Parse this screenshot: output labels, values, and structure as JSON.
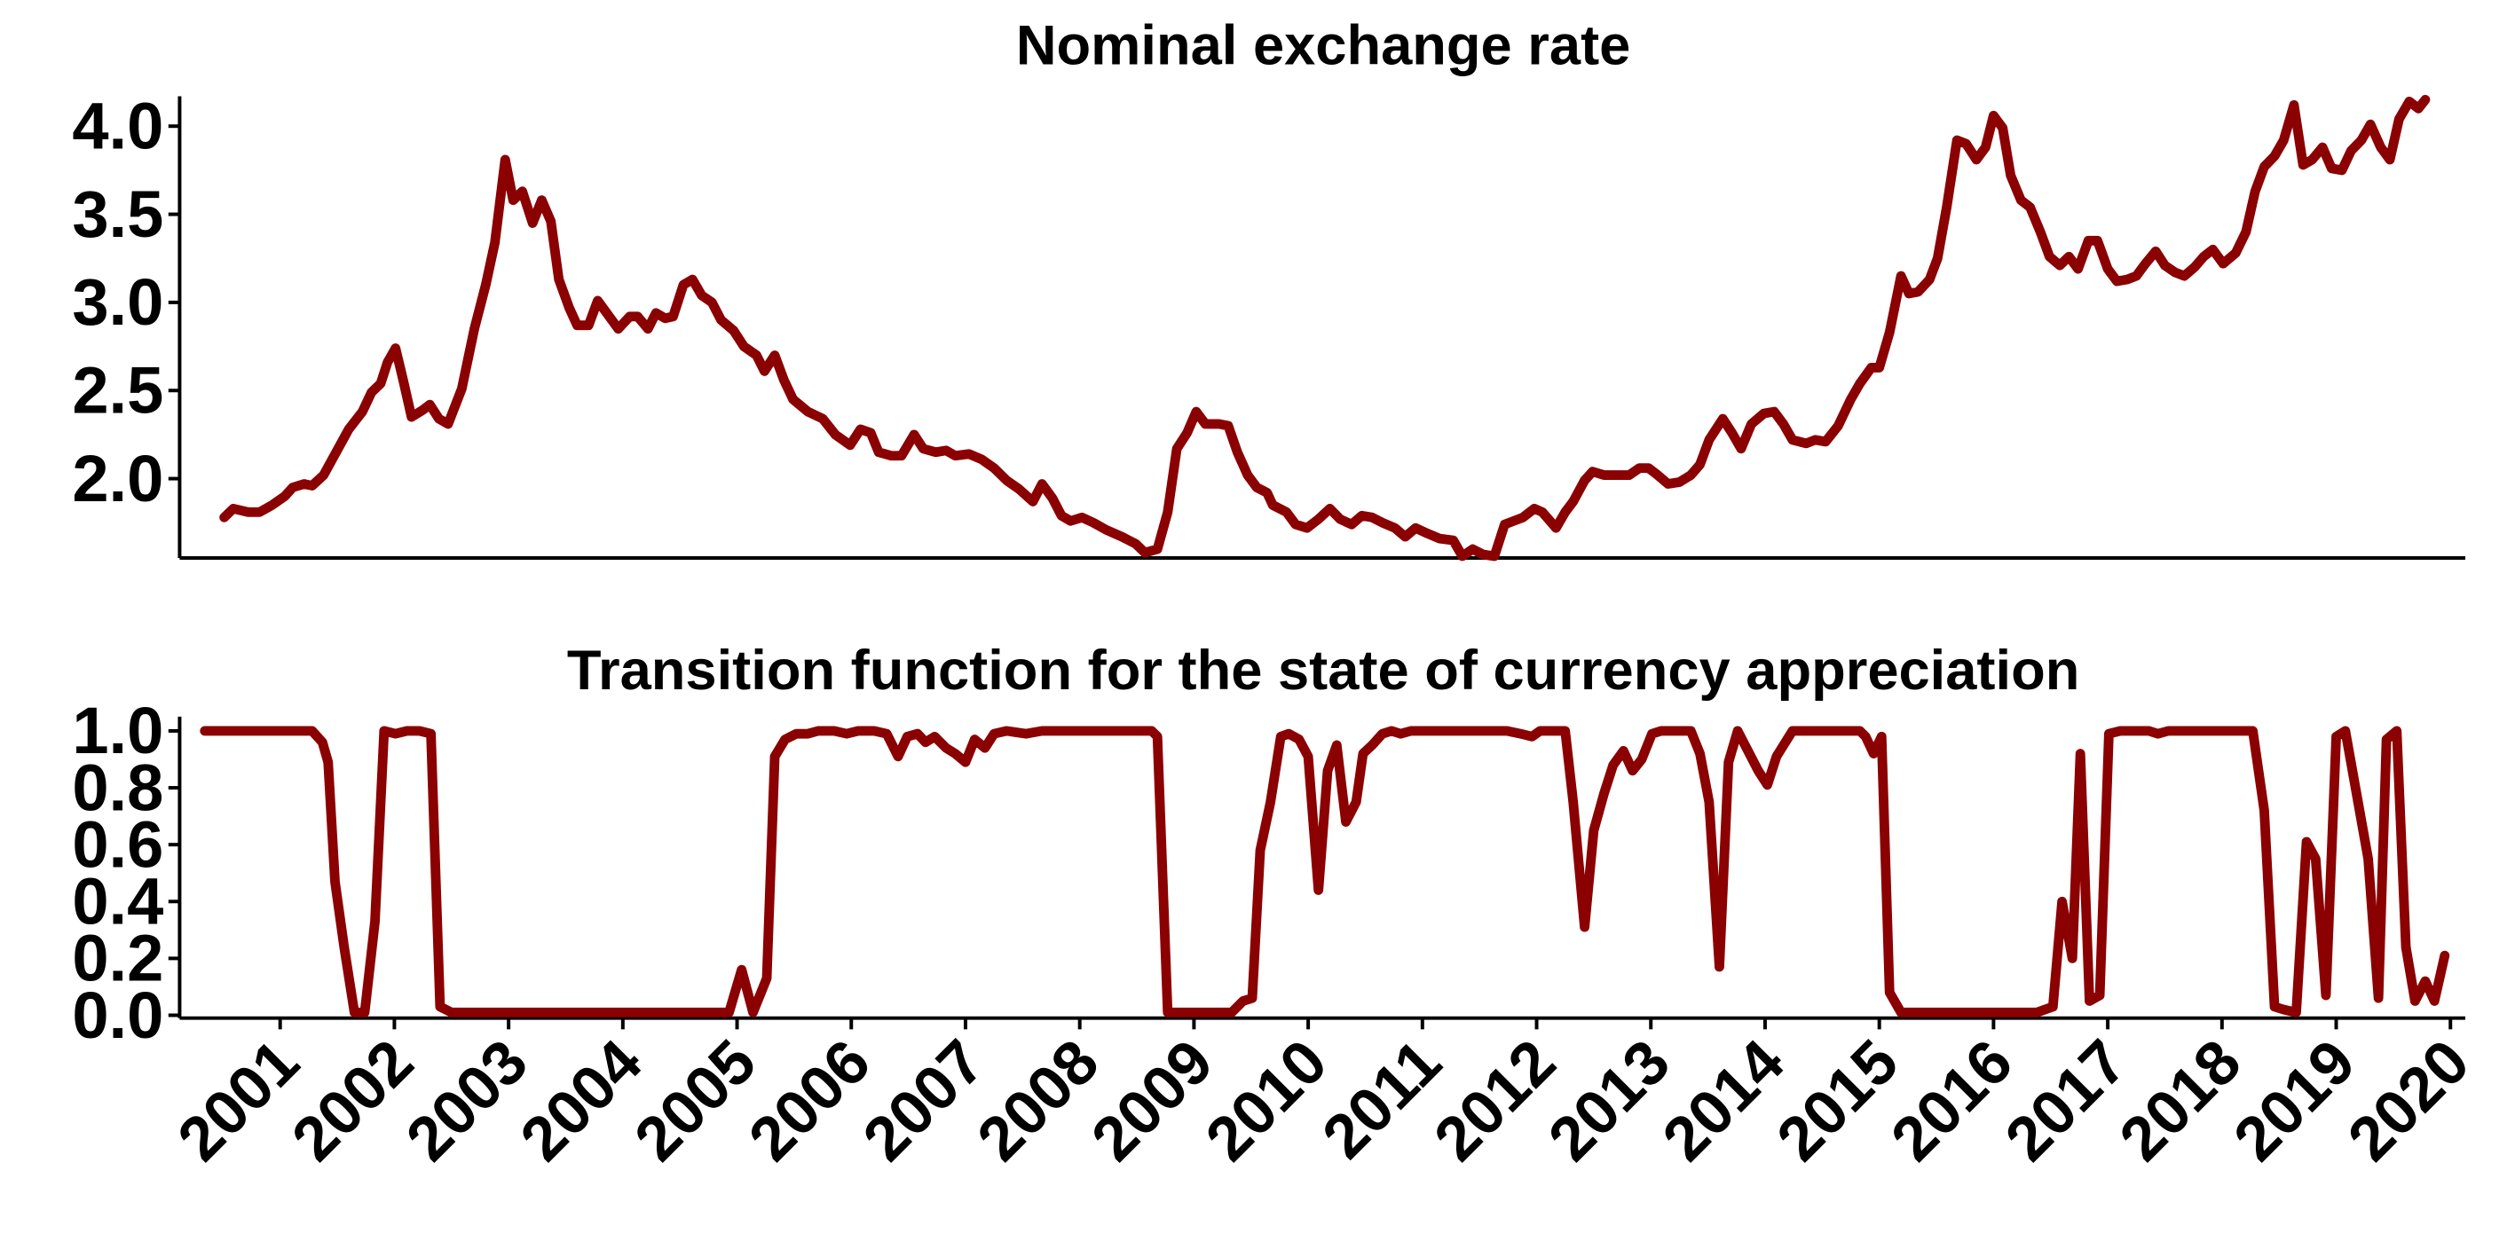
{
  "chart_data": [
    {
      "type": "line",
      "title": "Nominal exchange rate",
      "color": "#8b0000",
      "xlim": [
        2000.12,
        2020.13
      ],
      "ylim": [
        1.55,
        4.17
      ],
      "yticks": [
        2.0,
        2.5,
        3.0,
        3.5,
        4.0
      ],
      "x": [
        2000.51,
        2000.59,
        2000.72,
        2000.82,
        2000.93,
        2001.04,
        2001.11,
        2001.21,
        2001.28,
        2001.38,
        2001.49,
        2001.6,
        2001.72,
        2001.8,
        2001.88,
        2001.94,
        2002.01,
        2002.08,
        2002.15,
        2002.25,
        2002.31,
        2002.39,
        2002.47,
        2002.59,
        2002.7,
        2002.8,
        2002.88,
        2002.97,
        2003.04,
        2003.12,
        2003.21,
        2003.29,
        2003.37,
        2003.44,
        2003.53,
        2003.6,
        2003.7,
        2003.78,
        2003.87,
        2003.96,
        2004.06,
        2004.13,
        2004.22,
        2004.29,
        2004.37,
        2004.44,
        2004.53,
        2004.61,
        2004.69,
        2004.78,
        2004.86,
        2004.97,
        2005.06,
        2005.17,
        2005.24,
        2005.33,
        2005.41,
        2005.49,
        2005.62,
        2005.75,
        2005.86,
        2005.99,
        2006.08,
        2006.17,
        2006.24,
        2006.35,
        2006.44,
        2006.55,
        2006.63,
        2006.74,
        2006.83,
        2006.91,
        2007.03,
        2007.14,
        2007.25,
        2007.36,
        2007.47,
        2007.59,
        2007.67,
        2007.76,
        2007.84,
        2007.92,
        2008.02,
        2008.12,
        2008.23,
        2008.37,
        2008.49,
        2008.57,
        2008.68,
        2008.77,
        2008.85,
        2008.94,
        2009.02,
        2009.1,
        2009.22,
        2009.3,
        2009.38,
        2009.47,
        2009.55,
        2009.64,
        2009.69,
        2009.81,
        2009.89,
        2009.99,
        2010.09,
        2010.19,
        2010.28,
        2010.38,
        2010.47,
        2010.56,
        2010.65,
        2010.76,
        2010.85,
        2010.94,
        2011.04,
        2011.15,
        2011.27,
        2011.35,
        2011.44,
        2011.53,
        2011.63,
        2011.72,
        2011.8,
        2011.88,
        2011.98,
        2012.05,
        2012.17,
        2012.25,
        2012.32,
        2012.42,
        2012.49,
        2012.59,
        2012.7,
        2012.81,
        2012.9,
        2012.98,
        2013.06,
        2013.15,
        2013.25,
        2013.35,
        2013.43,
        2013.51,
        2013.63,
        2013.71,
        2013.79,
        2013.88,
        2013.99,
        2014.08,
        2014.16,
        2014.24,
        2014.36,
        2014.44,
        2014.53,
        2014.64,
        2014.75,
        2014.83,
        2014.93,
        2015.0,
        2015.09,
        2015.19,
        2015.26,
        2015.34,
        2015.44,
        2015.51,
        2015.59,
        2015.68,
        2015.76,
        2015.85,
        2015.93,
        2016.0,
        2016.08,
        2016.15,
        2016.24,
        2016.32,
        2016.41,
        2016.49,
        2016.58,
        2016.66,
        2016.74,
        2016.83,
        2016.91,
        2017.0,
        2017.08,
        2017.17,
        2017.25,
        2017.33,
        2017.42,
        2017.5,
        2017.59,
        2017.67,
        2017.76,
        2017.84,
        2017.92,
        2018.01,
        2018.12,
        2018.21,
        2018.29,
        2018.37,
        2018.46,
        2018.54,
        2018.63,
        2018.71,
        2018.79,
        2018.88,
        2018.96,
        2019.05,
        2019.13,
        2019.22,
        2019.3,
        2019.39,
        2019.47,
        2019.55,
        2019.64,
        2019.72,
        2019.78
      ],
      "values": [
        1.78,
        1.83,
        1.81,
        1.81,
        1.85,
        1.9,
        1.95,
        1.97,
        1.96,
        2.02,
        2.15,
        2.28,
        2.38,
        2.49,
        2.54,
        2.66,
        2.74,
        2.55,
        2.35,
        2.39,
        2.42,
        2.34,
        2.31,
        2.51,
        2.85,
        3.1,
        3.34,
        3.81,
        3.58,
        3.63,
        3.45,
        3.58,
        3.46,
        3.13,
        2.97,
        2.87,
        2.87,
        3.01,
        2.93,
        2.85,
        2.92,
        2.92,
        2.85,
        2.94,
        2.91,
        2.92,
        3.1,
        3.13,
        3.04,
        3.0,
        2.9,
        2.84,
        2.75,
        2.7,
        2.61,
        2.7,
        2.56,
        2.45,
        2.38,
        2.34,
        2.25,
        2.19,
        2.28,
        2.26,
        2.15,
        2.13,
        2.13,
        2.25,
        2.17,
        2.15,
        2.16,
        2.13,
        2.14,
        2.11,
        2.06,
        1.99,
        1.94,
        1.87,
        1.97,
        1.89,
        1.79,
        1.76,
        1.78,
        1.75,
        1.71,
        1.67,
        1.63,
        1.58,
        1.6,
        1.81,
        2.17,
        2.26,
        2.38,
        2.31,
        2.31,
        2.3,
        2.15,
        2.02,
        1.95,
        1.92,
        1.85,
        1.81,
        1.74,
        1.72,
        1.77,
        1.83,
        1.77,
        1.74,
        1.79,
        1.78,
        1.75,
        1.72,
        1.67,
        1.72,
        1.69,
        1.66,
        1.65,
        1.56,
        1.6,
        1.57,
        1.56,
        1.74,
        1.76,
        1.78,
        1.83,
        1.81,
        1.72,
        1.81,
        1.87,
        1.99,
        2.04,
        2.02,
        2.02,
        2.02,
        2.06,
        2.06,
        2.02,
        1.97,
        1.98,
        2.02,
        2.08,
        2.22,
        2.34,
        2.26,
        2.17,
        2.31,
        2.37,
        2.38,
        2.31,
        2.22,
        2.2,
        2.22,
        2.21,
        2.3,
        2.45,
        2.54,
        2.63,
        2.63,
        2.83,
        3.15,
        3.05,
        3.06,
        3.13,
        3.25,
        3.54,
        3.92,
        3.9,
        3.81,
        3.88,
        4.06,
        3.99,
        3.72,
        3.58,
        3.54,
        3.4,
        3.26,
        3.21,
        3.26,
        3.19,
        3.35,
        3.35,
        3.19,
        3.12,
        3.13,
        3.15,
        3.22,
        3.29,
        3.21,
        3.17,
        3.15,
        3.2,
        3.26,
        3.3,
        3.22,
        3.28,
        3.4,
        3.63,
        3.77,
        3.83,
        3.92,
        4.12,
        3.78,
        3.81,
        3.88,
        3.76,
        3.75,
        3.86,
        3.92,
        4.01,
        3.88,
        3.81,
        4.04,
        4.14,
        4.1,
        4.15
      ]
    },
    {
      "type": "line",
      "title": "Transition function for the state of currency appreciation",
      "color": "#8b0000",
      "xlim": [
        2000.12,
        2020.13
      ],
      "ylim": [
        -0.01,
        1.05
      ],
      "yticks": [
        0.0,
        0.2,
        0.4,
        0.6,
        0.8,
        1.0
      ],
      "xticks": [
        2001,
        2002,
        2003,
        2004,
        2005,
        2006,
        2007,
        2008,
        2009,
        2010,
        2011,
        2012,
        2013,
        2014,
        2015,
        2016,
        2017,
        2018,
        2019,
        2020
      ],
      "x": [
        2000.34,
        2001.28,
        2001.37,
        2001.42,
        2001.48,
        2001.56,
        2001.65,
        2001.74,
        2001.83,
        2001.91,
        2002.01,
        2002.11,
        2002.22,
        2002.32,
        2002.4,
        2002.5,
        2002.62,
        2004.93,
        2005.04,
        2005.14,
        2005.26,
        2005.33,
        2005.42,
        2005.52,
        2005.62,
        2005.71,
        2005.85,
        2005.96,
        2006.06,
        2006.2,
        2006.31,
        2006.41,
        2006.49,
        2006.58,
        2006.65,
        2006.73,
        2006.83,
        2006.91,
        2007.0,
        2007.08,
        2007.17,
        2007.25,
        2007.36,
        2007.53,
        2007.67,
        2008.37,
        2008.63,
        2008.68,
        2008.77,
        2008.94,
        2009.33,
        2009.43,
        2009.51,
        2009.58,
        2009.67,
        2009.76,
        2009.83,
        2009.92,
        2010.0,
        2010.09,
        2010.17,
        2010.25,
        2010.33,
        2010.42,
        2010.48,
        2010.56,
        2010.65,
        2010.73,
        2010.81,
        2010.9,
        2011.18,
        2011.74,
        2011.86,
        2011.96,
        2012.03,
        2012.25,
        2012.32,
        2012.42,
        2012.5,
        2012.59,
        2012.67,
        2012.76,
        2012.84,
        2012.92,
        2013.01,
        2013.09,
        2013.35,
        2013.43,
        2013.51,
        2013.6,
        2013.68,
        2013.76,
        2013.85,
        2013.94,
        2014.02,
        2014.1,
        2014.24,
        2014.83,
        2014.88,
        2014.95,
        2015.02,
        2015.09,
        2015.19,
        2015.4,
        2016.38,
        2016.52,
        2016.6,
        2016.69,
        2016.76,
        2016.84,
        2016.93,
        2017.01,
        2017.11,
        2017.36,
        2017.44,
        2017.53,
        2018.27,
        2018.37,
        2018.46,
        2018.54,
        2018.65,
        2018.74,
        2018.82,
        2018.91,
        2019.0,
        2019.08,
        2019.28,
        2019.37,
        2019.44,
        2019.53,
        2019.61,
        2019.69,
        2019.78,
        2019.86,
        2019.95
      ],
      "values": [
        1.0,
        1.0,
        0.96,
        0.89,
        0.47,
        0.24,
        0.01,
        0.01,
        0.33,
        1.0,
        0.99,
        1.0,
        1.0,
        0.99,
        0.03,
        0.01,
        0.01,
        0.01,
        0.16,
        0.01,
        0.13,
        0.91,
        0.97,
        0.99,
        0.99,
        1.0,
        1.0,
        0.99,
        1.0,
        1.0,
        0.99,
        0.91,
        0.98,
        0.99,
        0.96,
        0.98,
        0.94,
        0.92,
        0.89,
        0.97,
        0.94,
        0.99,
        1.0,
        0.99,
        1.0,
        1.0,
        1.0,
        0.98,
        0.01,
        0.01,
        0.01,
        0.05,
        0.06,
        0.58,
        0.75,
        0.98,
        0.99,
        0.97,
        0.91,
        0.44,
        0.86,
        0.95,
        0.68,
        0.75,
        0.92,
        0.95,
        0.99,
        1.0,
        0.99,
        1.0,
        1.0,
        1.0,
        0.99,
        0.98,
        1.0,
        1.0,
        0.75,
        0.31,
        0.65,
        0.78,
        0.88,
        0.93,
        0.86,
        0.9,
        0.99,
        1.0,
        1.0,
        0.92,
        0.75,
        0.17,
        0.89,
        1.0,
        0.93,
        0.86,
        0.81,
        0.91,
        1.0,
        1.0,
        0.98,
        0.92,
        0.98,
        0.08,
        0.01,
        0.01,
        0.01,
        0.03,
        0.4,
        0.2,
        0.92,
        0.05,
        0.07,
        0.99,
        1.0,
        1.0,
        0.99,
        1.0,
        1.0,
        0.72,
        0.03,
        0.02,
        0.01,
        0.61,
        0.55,
        0.07,
        0.98,
        1.0,
        0.55,
        0.06,
        0.97,
        1.0,
        0.24,
        0.05,
        0.12,
        0.05,
        0.21
      ]
    }
  ]
}
